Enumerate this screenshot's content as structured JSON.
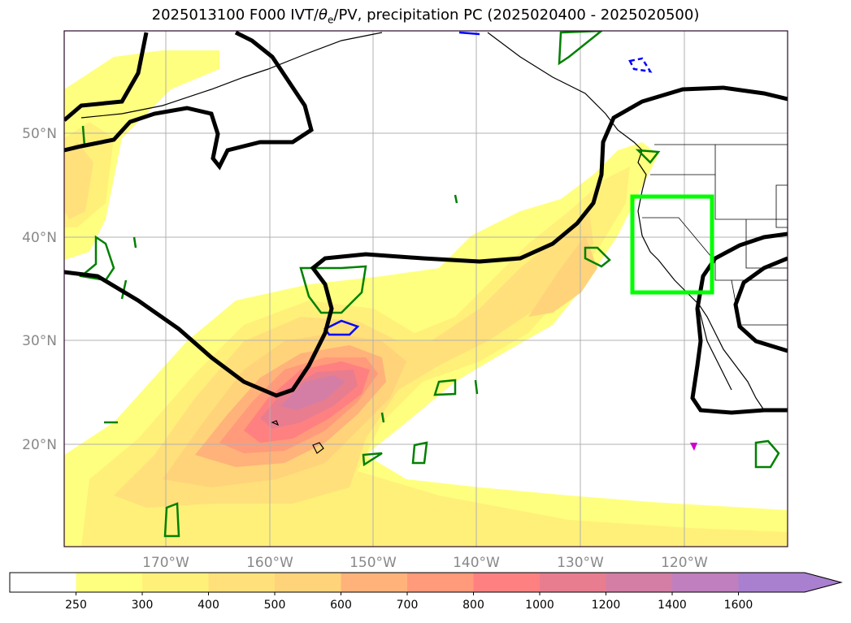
{
  "title": {
    "text": "2025013100 F000 IVT/θe/PV, precipitation PC (2025020400 - 2025020500)",
    "prefix": "2025013100 F000 IVT/",
    "theta": "θ",
    "theta_sub": "e",
    "suffix": "/PV, precipitation PC (2025020400 - 2025020500)"
  },
  "map": {
    "lon_labels": [
      "170°W",
      "160°W",
      "150°W",
      "140°W",
      "130°W",
      "120°W"
    ],
    "lat_labels": [
      "50°N",
      "40°N",
      "30°N",
      "20°N"
    ],
    "highlight_box_color": "#00ff00",
    "pv_contour_color": "#000000",
    "theta_e_color_positive": "#008000",
    "theta_e_color_negative": "#0000ff"
  },
  "colorbar": {
    "levels": [
      "250",
      "300",
      "400",
      "500",
      "600",
      "700",
      "800",
      "1000",
      "1200",
      "1400",
      "1600"
    ],
    "colors": [
      "#ffffff",
      "#ffff7f",
      "#fff07a",
      "#ffe07a",
      "#ffd37a",
      "#ffb27a",
      "#ff9a7a",
      "#ff8080",
      "#e87d8f",
      "#d47ea6",
      "#c07fbe",
      "#a97fcf"
    ],
    "extend": "max"
  }
}
